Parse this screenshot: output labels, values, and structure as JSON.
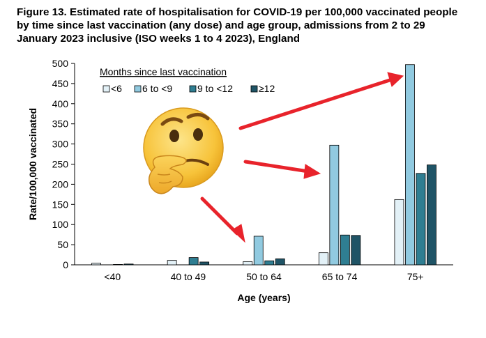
{
  "chart_data": {
    "type": "bar",
    "title": "Figure 13. Estimated rate of hospitalisation for COVID-19 per 100,000 vaccinated people by time since last vaccination (any dose) and age group, admissions from 2 to 29 January 2023 inclusive (ISO weeks 1 to 4 2023), England",
    "xlabel": "Age (years)",
    "ylabel": "Rate/100,000 vaccinated",
    "ylim": [
      0,
      500
    ],
    "yticks": [
      0,
      50,
      100,
      150,
      200,
      250,
      300,
      350,
      400,
      450,
      500
    ],
    "categories": [
      "<40",
      "40 to 49",
      "50 to 64",
      "65 to 74",
      "75+"
    ],
    "legend_title": "Months since last vaccination",
    "legend_position": "top-left",
    "grid": false,
    "series": [
      {
        "name": "<6",
        "color": "#e3f1f7",
        "values": [
          4,
          11,
          8,
          30,
          162
        ]
      },
      {
        "name": "6 to <9",
        "color": "#91cae0",
        "values": [
          0,
          0,
          71,
          297,
          497
        ]
      },
      {
        "name": "9 to <12",
        "color": "#2f7e92",
        "values": [
          1,
          18,
          10,
          74,
          227
        ]
      },
      {
        "name": "≥12",
        "color": "#1f5466",
        "values": [
          2,
          7,
          15,
          73,
          248
        ]
      }
    ],
    "annotations": [
      "thinking-face-emoji",
      "red-arrow-to-50-to-64",
      "red-arrow-to-65-to-74",
      "red-arrow-to-75-plus"
    ]
  }
}
